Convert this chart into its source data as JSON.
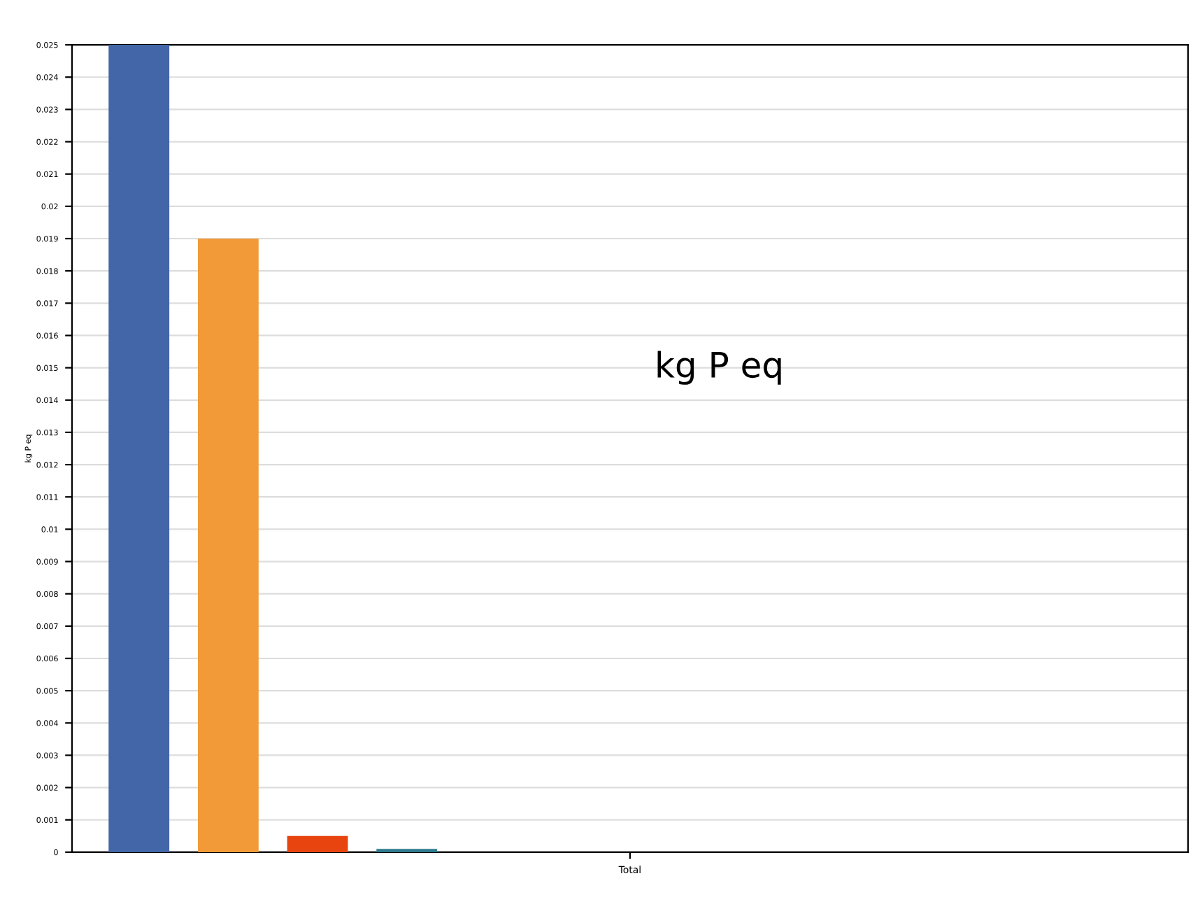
{
  "chart_data": {
    "type": "bar",
    "ylabel": "kg P eq",
    "categories": [
      "Total"
    ],
    "series": [
      {
        "color": "#4266a8",
        "values": [
          0.025
        ]
      },
      {
        "color": "#f29a38",
        "values": [
          0.019
        ]
      },
      {
        "color": "#e8440f",
        "values": [
          0.0005
        ]
      },
      {
        "color": "#2f7b8e",
        "values": [
          0.0001
        ]
      },
      {
        "color": "#0d1a48",
        "values": [
          0
        ]
      },
      {
        "color": "#0b5a3e",
        "values": [
          0
        ]
      },
      {
        "color": "#9a0a0e",
        "values": [
          0
        ]
      },
      {
        "color": "#d9a53a",
        "values": [
          0
        ]
      },
      {
        "color": "#3d9a80",
        "values": [
          0
        ]
      },
      {
        "color": "#4a4a4a",
        "values": [
          0
        ]
      },
      {
        "color": "#d9cf6a",
        "values": [
          0
        ]
      },
      {
        "color": "#9a9a9a",
        "values": [
          0
        ]
      }
    ],
    "ylim": [
      0,
      0.025
    ],
    "yticks": [
      0,
      0.001,
      0.002,
      0.003,
      0.004,
      0.005,
      0.006,
      0.007,
      0.008,
      0.009,
      0.01,
      0.011,
      0.012,
      0.013,
      0.014,
      0.015,
      0.016,
      0.017,
      0.018,
      0.019,
      0.02,
      0.021,
      0.022,
      0.023,
      0.024,
      0.025
    ],
    "grid": "y",
    "legend": false,
    "annotations": [
      "kg P eq"
    ]
  }
}
